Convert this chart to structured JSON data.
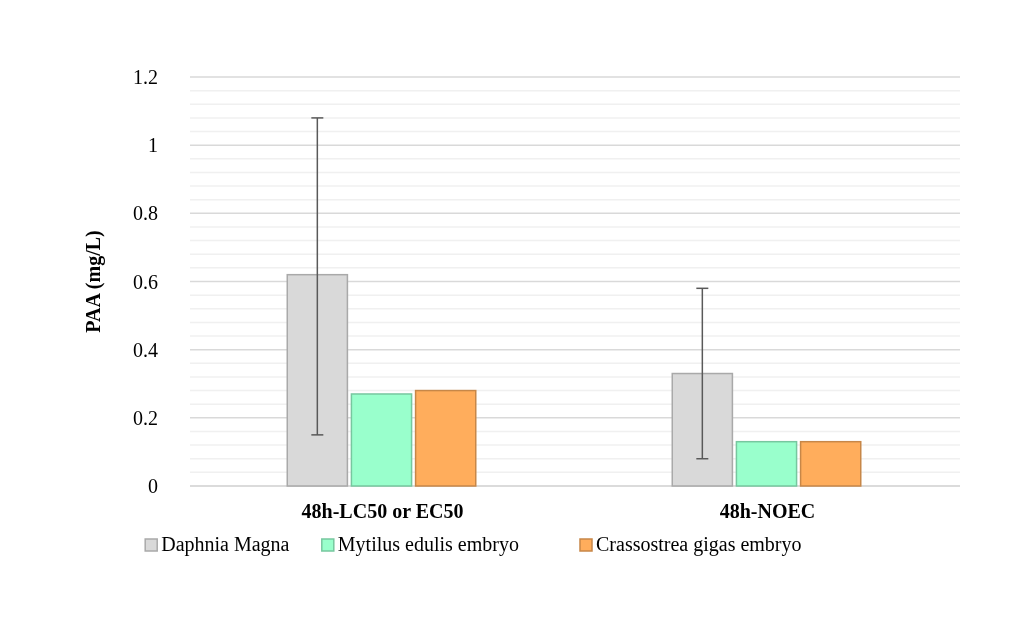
{
  "chart_data": {
    "type": "bar",
    "ylabel": "PAA (mg/L)",
    "categories": [
      "48h-LC50 or EC50",
      "48h-NOEC"
    ],
    "series": [
      {
        "name": "Daphnia Magna",
        "color": "#d9d9d9",
        "values": [
          0.62,
          0.33
        ],
        "errors": [
          [
            0.15,
            1.08
          ],
          [
            0.08,
            0.58
          ]
        ]
      },
      {
        "name": "Mytilus edulis embryo",
        "color": "#99ffcc",
        "values": [
          0.27,
          0.13
        ]
      },
      {
        "name": "Crassostrea gigas embryo",
        "color": "#ffad5c",
        "values": [
          0.28,
          0.13
        ]
      }
    ],
    "ylim": [
      0,
      1.2
    ],
    "yticks": [
      0,
      {
        "value": 0.04,
        "label": null
      },
      {
        "value": 0.08,
        "label": null
      },
      {
        "value": 0.12,
        "label": null
      },
      {
        "value": 0.16,
        "label": null
      },
      0.2,
      {
        "value": 0.24,
        "label": null
      },
      {
        "value": 0.28,
        "label": null
      },
      {
        "value": 0.32,
        "label": null
      },
      {
        "value": 0.36,
        "label": null
      },
      0.4,
      {
        "value": 0.44,
        "label": null
      },
      {
        "value": 0.48,
        "label": null
      },
      {
        "value": 0.52,
        "label": null
      },
      {
        "value": 0.56,
        "label": null
      },
      0.6,
      {
        "value": 0.64,
        "label": null
      },
      {
        "value": 0.68,
        "label": null
      },
      {
        "value": 0.72,
        "label": null
      },
      {
        "value": 0.76,
        "label": null
      },
      0.8,
      {
        "value": 0.84,
        "label": null
      },
      {
        "value": 0.88,
        "label": null
      },
      {
        "value": 0.92,
        "label": null
      },
      {
        "value": 0.96,
        "label": null
      },
      1,
      {
        "value": 1.04,
        "label": null
      },
      {
        "value": 1.08,
        "label": null
      },
      {
        "value": 1.12,
        "label": null
      },
      {
        "value": 1.16,
        "label": null
      },
      1.2
    ],
    "grid": true,
    "legend": "bottom"
  }
}
